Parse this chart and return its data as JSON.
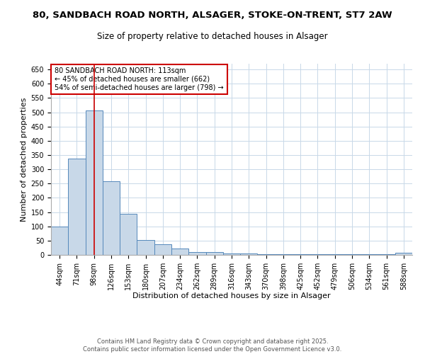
{
  "title1": "80, SANDBACH ROAD NORTH, ALSAGER, STOKE-ON-TRENT, ST7 2AW",
  "title2": "Size of property relative to detached houses in Alsager",
  "xlabel": "Distribution of detached houses by size in Alsager",
  "ylabel": "Number of detached properties",
  "categories": [
    "44sqm",
    "71sqm",
    "98sqm",
    "126sqm",
    "153sqm",
    "180sqm",
    "207sqm",
    "234sqm",
    "262sqm",
    "289sqm",
    "316sqm",
    "343sqm",
    "370sqm",
    "398sqm",
    "425sqm",
    "452sqm",
    "479sqm",
    "506sqm",
    "534sqm",
    "561sqm",
    "588sqm"
  ],
  "values": [
    100,
    338,
    507,
    258,
    143,
    53,
    38,
    23,
    10,
    10,
    5,
    5,
    3,
    2,
    2,
    2,
    2,
    2,
    2,
    2,
    7
  ],
  "bar_color": "#c8d8e8",
  "bar_edge_color": "#5588bb",
  "vline_x": 2,
  "vline_color": "#cc0000",
  "annotation_text": "80 SANDBACH ROAD NORTH: 113sqm\n← 45% of detached houses are smaller (662)\n54% of semi-detached houses are larger (798) →",
  "annotation_box_color": "#cc0000",
  "ylim": [
    0,
    670
  ],
  "yticks": [
    0,
    50,
    100,
    150,
    200,
    250,
    300,
    350,
    400,
    450,
    500,
    550,
    600,
    650
  ],
  "bg_color": "#ffffff",
  "grid_color": "#c8d8e8",
  "footnote": "Contains HM Land Registry data © Crown copyright and database right 2025.\nContains public sector information licensed under the Open Government Licence v3.0.",
  "title_fontsize": 9.5,
  "subtitle_fontsize": 8.5,
  "axis_fontsize": 8,
  "tick_fontsize": 7,
  "annot_fontsize": 7,
  "footnote_fontsize": 6
}
